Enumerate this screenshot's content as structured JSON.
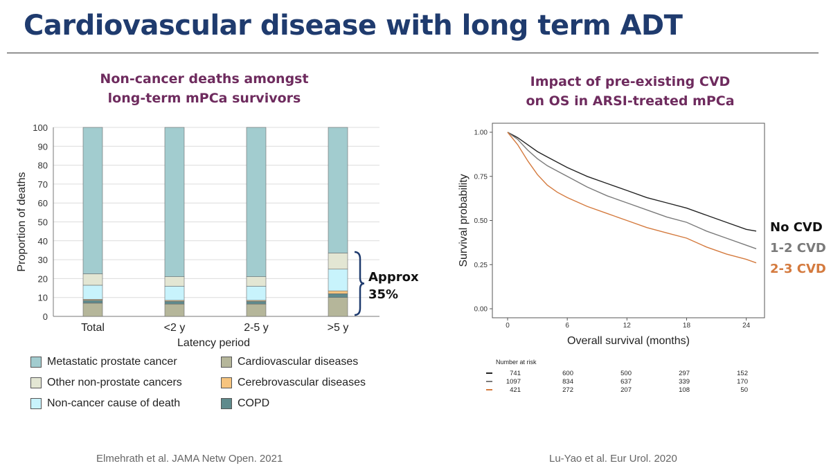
{
  "slide": {
    "title": "Cardiovascular disease with long term ADT",
    "left_subtitle": [
      "Non-cancer deaths amongst",
      "long-term mPCa survivors"
    ],
    "right_subtitle": [
      "Impact of pre-existing CVD",
      "on OS in ARSI-treated mPCa"
    ],
    "left_citation": "Elmehrath et al. JAMA Netw Open. 2021",
    "right_citation": "Lu-Yao et al. Eur Urol. 2020",
    "bracket_label": [
      "Approx",
      "35%"
    ]
  },
  "chart_data": [
    {
      "type": "bar",
      "stacked": true,
      "title": "Non-cancer deaths amongst long-term mPCa survivors",
      "xlabel": "Latency period",
      "ylabel": "Proportion of deaths",
      "ylim": [
        0,
        100
      ],
      "yticks": [
        0,
        10,
        20,
        30,
        40,
        50,
        60,
        70,
        80,
        90,
        100
      ],
      "grid": true,
      "categories": [
        "Total",
        "<2 y",
        "2-5 y",
        ">5 y"
      ],
      "series": [
        {
          "name": "Cardiovascular diseases",
          "color": "#b5b69a",
          "values": [
            7,
            6.5,
            6.5,
            10
          ]
        },
        {
          "name": "COPD",
          "color": "#5f8a8c",
          "values": [
            1.5,
            1.5,
            1.5,
            2
          ]
        },
        {
          "name": "Cerebrovascular diseases",
          "color": "#f6c47f",
          "values": [
            0.5,
            0.5,
            0.5,
            1.5
          ]
        },
        {
          "name": "Non-cancer cause of death",
          "color": "#c8f3fc",
          "values": [
            7.5,
            7.5,
            7.5,
            11.5
          ]
        },
        {
          "name": "Other non-prostate cancers",
          "color": "#e3e6d3",
          "values": [
            6,
            5,
            5,
            8.5
          ]
        },
        {
          "name": "Metastatic prostate cancer",
          "color": "#a2cccf",
          "values": [
            77.5,
            79,
            79,
            66.5
          ]
        }
      ],
      "legend_order": [
        "Metastatic prostate cancer",
        "Cardiovascular diseases",
        "Other non-prostate cancers",
        "Cerebrovascular diseases",
        "Non-cancer cause of death",
        "COPD"
      ],
      "legend_placement": "bottom"
    },
    {
      "type": "line",
      "title": "Impact of pre-existing CVD on OS in ARSI-treated mPCa",
      "xlabel": "Overall survival (months)",
      "ylabel": "Survival probability",
      "xlim": [
        0,
        25
      ],
      "ylim": [
        0,
        1
      ],
      "xticks": [
        0,
        6,
        12,
        18,
        24
      ],
      "yticks": [
        "0.00",
        "0.25",
        "0.50",
        "0.75",
        "1.00"
      ],
      "series": [
        {
          "name": "No CVD",
          "color": "#222222",
          "x": [
            0,
            1,
            2,
            3,
            4,
            5,
            6,
            8,
            10,
            12,
            14,
            16,
            18,
            20,
            22,
            24,
            25
          ],
          "y": [
            1.0,
            0.97,
            0.93,
            0.89,
            0.86,
            0.83,
            0.8,
            0.75,
            0.71,
            0.67,
            0.63,
            0.6,
            0.57,
            0.53,
            0.49,
            0.45,
            0.44
          ]
        },
        {
          "name": "1-2 CVD",
          "color": "#7a7a7a",
          "x": [
            0,
            1,
            2,
            3,
            4,
            5,
            6,
            8,
            10,
            12,
            14,
            16,
            18,
            20,
            22,
            24,
            25
          ],
          "y": [
            1.0,
            0.96,
            0.9,
            0.85,
            0.81,
            0.78,
            0.75,
            0.69,
            0.64,
            0.6,
            0.56,
            0.52,
            0.49,
            0.44,
            0.4,
            0.36,
            0.34
          ]
        },
        {
          "name": "2-3 CVD",
          "color": "#d47a3e",
          "x": [
            0,
            1,
            2,
            3,
            4,
            5,
            6,
            8,
            10,
            12,
            14,
            16,
            18,
            20,
            22,
            24,
            25
          ],
          "y": [
            1.0,
            0.93,
            0.84,
            0.76,
            0.7,
            0.66,
            0.63,
            0.58,
            0.54,
            0.5,
            0.46,
            0.43,
            0.4,
            0.35,
            0.31,
            0.28,
            0.26
          ]
        }
      ],
      "risk_table": {
        "title": "Number at risk",
        "rows": [
          {
            "color": "#222222",
            "values": [
              "741",
              "600",
              "500",
              "297",
              "152"
            ]
          },
          {
            "color": "#7a7a7a",
            "values": [
              "1097",
              "834",
              "637",
              "339",
              "170"
            ]
          },
          {
            "color": "#d47a3e",
            "values": [
              "421",
              "272",
              "207",
              "108",
              "50"
            ]
          }
        ]
      }
    }
  ]
}
